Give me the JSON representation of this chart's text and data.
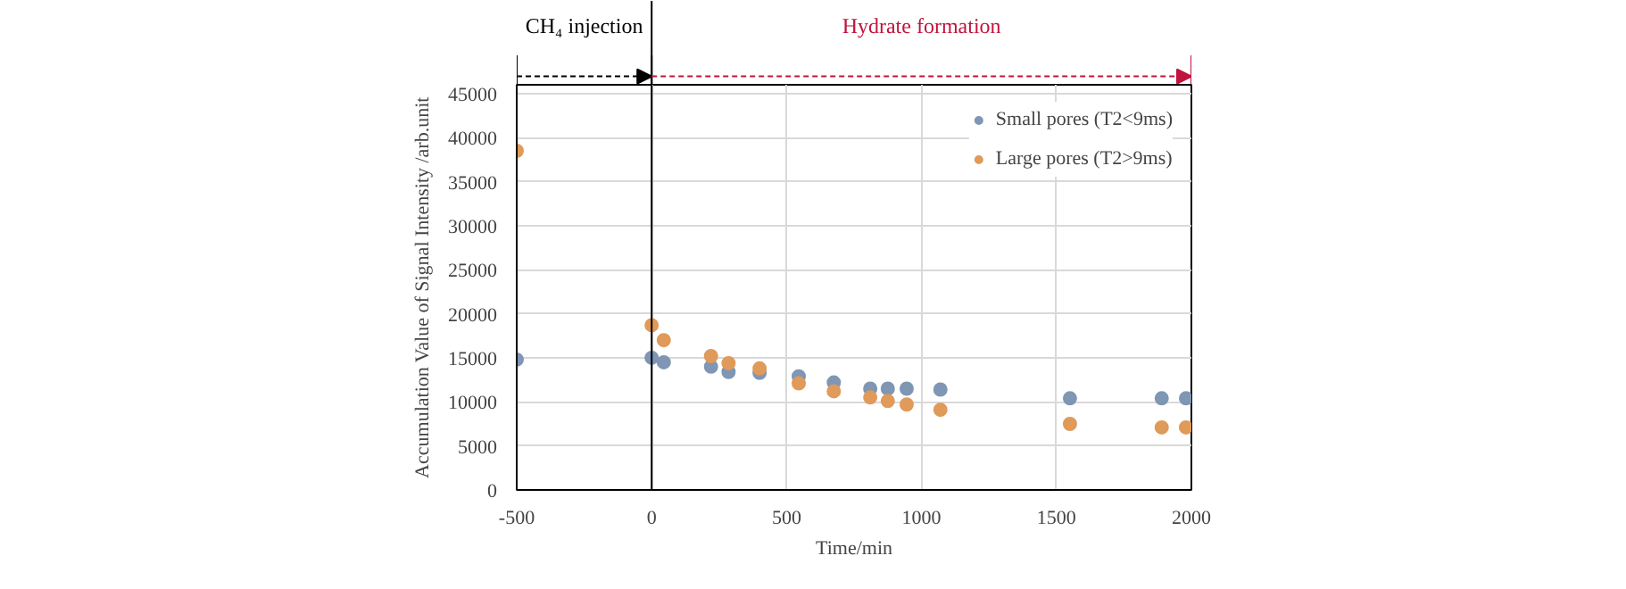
{
  "chart_data": {
    "type": "scatter",
    "xlabel": "Time/min",
    "ylabel": "Accumulation Value of Signal Intensity /arb.unit",
    "x": [
      -500,
      0,
      45,
      220,
      285,
      400,
      545,
      675,
      810,
      875,
      945,
      1070,
      1550,
      1890,
      1980
    ],
    "series": [
      {
        "name": "Small pores (T2<9ms)",
        "color": "#7f96b4",
        "values": [
          14800,
          15000,
          14500,
          14000,
          13400,
          13300,
          12900,
          12200,
          11500,
          11500,
          11500,
          11400,
          10400,
          10400,
          10400
        ]
      },
      {
        "name": "Large pores (T2>9ms)",
        "color": "#e09a5a",
        "values": [
          38500,
          18700,
          17000,
          15200,
          14400,
          13800,
          12100,
          11200,
          10500,
          10100,
          9700,
          9100,
          7500,
          7100,
          7100
        ]
      }
    ],
    "xlim": [
      -500,
      2000
    ],
    "xticks": [
      -500,
      0,
      500,
      1000,
      1500,
      2000
    ],
    "ylim": [
      0,
      46000
    ],
    "yticks": [
      0,
      5000,
      10000,
      15000,
      20000,
      25000,
      30000,
      35000,
      40000,
      45000
    ],
    "ref_lines": [
      {
        "axis": "x",
        "value": 0,
        "color": "#000000"
      }
    ],
    "annotations": [
      "CH₄ injection",
      "Hydrate formation"
    ],
    "grid": true,
    "legend": "top right",
    "marker": "circle"
  }
}
